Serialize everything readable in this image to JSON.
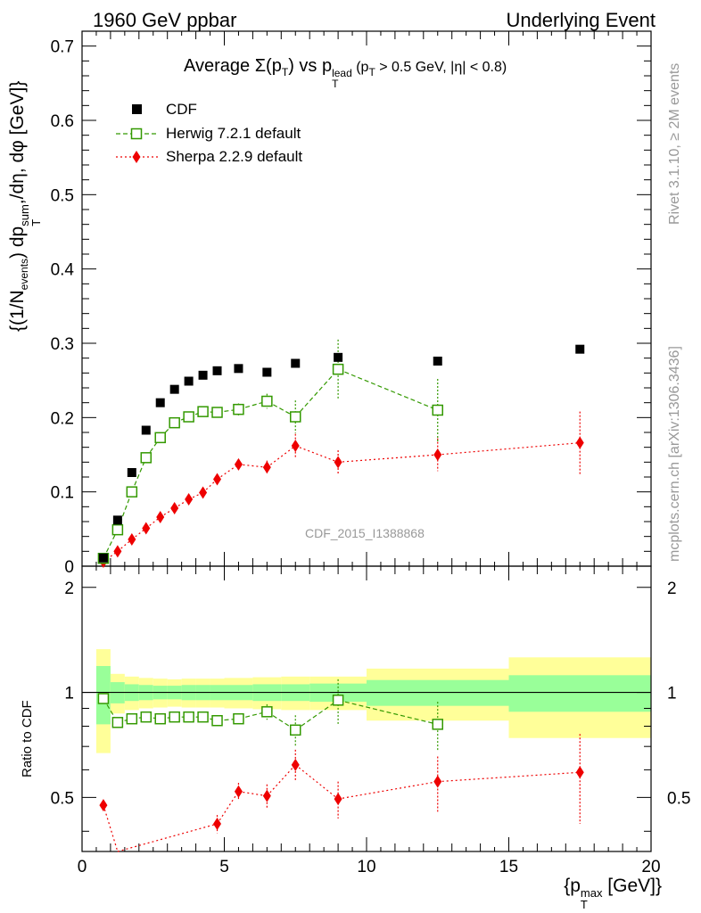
{
  "header": {
    "left": "1960 GeV ppbar",
    "right": "Underlying Event",
    "rivet": "Rivet 3.1.10, ≥ 2M events",
    "mcplots": "mcplots.cern.ch [arXiv:1306.3436]",
    "analysis": "CDF_2015_I1388868"
  },
  "chart_data": [
    {
      "type": "scatter",
      "title_main": "Average Σ(p",
      "title_sub1": "T",
      "title_mid": ") vs p",
      "title_sup": "lead",
      "title_sub2": "T",
      "title_end": " (p",
      "title_sub3": "T",
      "title_tail": " > 0.5 GeV, |η| < 0.8)",
      "ylabel": "{(1/N_events) dp_T^sum/dη, dφ [GeV]}",
      "ylabel_parts": {
        "a": "{(1/N",
        "b": "events",
        "c": ") dp",
        "d": "sum",
        "e": "T",
        "f": ",/dη, dφ [GeV]}"
      },
      "ylim": [
        0,
        0.72
      ],
      "xlim": [
        0,
        20
      ],
      "yticks": [
        "0",
        "0.1",
        "0.2",
        "0.3",
        "0.4",
        "0.5",
        "0.6",
        "0.7"
      ],
      "legend_placement": "top-left",
      "series": [
        {
          "name": "CDF",
          "color": "#000000",
          "marker": "square-filled",
          "x": [
            0.75,
            1.25,
            1.75,
            2.25,
            2.75,
            3.25,
            3.75,
            4.25,
            4.75,
            5.5,
            6.5,
            7.5,
            9.0,
            12.5,
            17.5
          ],
          "y": [
            0.011,
            0.062,
            0.126,
            0.183,
            0.22,
            0.238,
            0.249,
            0.257,
            0.263,
            0.266,
            0.261,
            0.273,
            0.281,
            0.276,
            0.292
          ]
        },
        {
          "name": "Herwig 7.2.1 default",
          "color": "#339900",
          "marker": "square-open",
          "x": [
            0.75,
            1.25,
            1.75,
            2.25,
            2.75,
            3.25,
            3.75,
            4.25,
            4.75,
            5.5,
            6.5,
            7.5,
            9.0,
            12.5
          ],
          "y": [
            0.0105,
            0.049,
            0.1,
            0.146,
            0.173,
            0.193,
            0.201,
            0.208,
            0.207,
            0.211,
            0.222,
            0.201,
            0.265,
            0.21
          ],
          "err": [
            0.002,
            0.003,
            0.004,
            0.004,
            0.005,
            0.005,
            0.006,
            0.006,
            0.007,
            0.008,
            0.01,
            0.022,
            0.04,
            0.042
          ]
        },
        {
          "name": "Sherpa 2.2.9 default",
          "color": "#ee0000",
          "marker": "diamond-filled",
          "x": [
            0.75,
            1.25,
            1.75,
            2.25,
            2.75,
            3.25,
            3.75,
            4.25,
            4.75,
            5.5,
            6.5,
            7.5,
            9.0,
            12.5,
            17.5
          ],
          "y": [
            0.006,
            0.02,
            0.036,
            0.051,
            0.066,
            0.078,
            0.09,
            0.099,
            0.117,
            0.137,
            0.133,
            0.162,
            0.14,
            0.15,
            0.166
          ],
          "err": [
            0.002,
            0.003,
            0.003,
            0.004,
            0.004,
            0.004,
            0.005,
            0.005,
            0.006,
            0.007,
            0.009,
            0.016,
            0.016,
            0.022,
            0.042
          ]
        }
      ]
    },
    {
      "type": "scatter",
      "ylabel": "Ratio to CDF",
      "xlabel": "{p_T^max [GeV]}",
      "xlabel_parts": {
        "a": "{p",
        "b": "max",
        "c": "T",
        "d": " [GeV]}"
      },
      "ylim": [
        0.35,
        2.3
      ],
      "xlim": [
        0,
        20
      ],
      "xticks": [
        "0",
        "5",
        "10",
        "15",
        "20"
      ],
      "yticks": [
        "0.5",
        "1",
        "2"
      ],
      "band_edges": [
        0.5,
        1.0,
        1.5,
        2.0,
        2.5,
        3.0,
        3.5,
        4.0,
        4.5,
        5.0,
        6.0,
        7.0,
        8.0,
        10.0,
        15.0,
        20.0
      ],
      "band_inner": [
        0.19,
        0.07,
        0.055,
        0.05,
        0.045,
        0.045,
        0.05,
        0.05,
        0.05,
        0.05,
        0.055,
        0.055,
        0.06,
        0.085,
        0.12
      ],
      "band_outer": [
        0.33,
        0.13,
        0.11,
        0.1,
        0.095,
        0.09,
        0.095,
        0.095,
        0.095,
        0.1,
        0.105,
        0.11,
        0.11,
        0.17,
        0.26
      ],
      "band_inner_color": "#99ff99",
      "band_outer_color": "#ffff99",
      "series": [
        {
          "name": "Herwig 7.2.1 default",
          "x": [
            0.75,
            1.25,
            1.75,
            2.25,
            2.75,
            3.25,
            3.75,
            4.25,
            4.75,
            5.5,
            6.5,
            7.5,
            9.0,
            12.5
          ],
          "y": [
            0.96,
            0.82,
            0.84,
            0.85,
            0.84,
            0.85,
            0.85,
            0.85,
            0.83,
            0.84,
            0.88,
            0.78,
            0.95,
            0.81
          ],
          "err": [
            0.0,
            0.02,
            0.015,
            0.015,
            0.015,
            0.015,
            0.015,
            0.015,
            0.02,
            0.025,
            0.045,
            0.08,
            0.14,
            0.13
          ]
        },
        {
          "name": "Sherpa 2.2.9 default",
          "x": [
            0.75,
            1.25,
            4.75,
            5.5,
            6.5,
            7.5,
            9.0,
            12.5,
            17.5
          ],
          "y": [
            0.475,
            0.32,
            0.42,
            0.52,
            0.505,
            0.62,
            0.495,
            0.555,
            0.59
          ],
          "err": [
            0.0,
            0.02,
            0.025,
            0.03,
            0.04,
            0.065,
            0.06,
            0.1,
            0.17
          ]
        }
      ]
    }
  ]
}
